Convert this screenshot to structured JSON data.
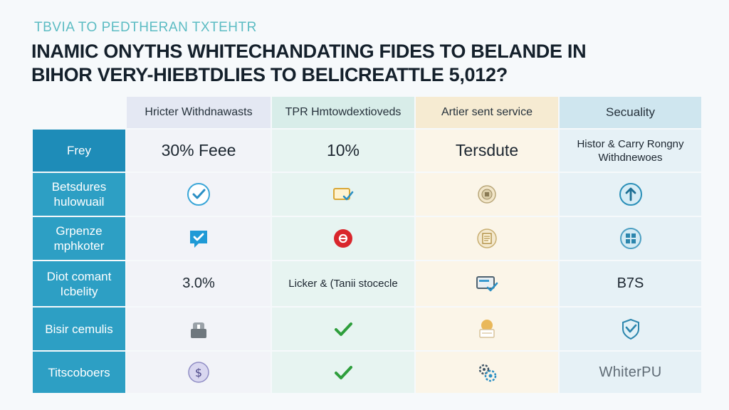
{
  "kicker": "TBVIA TO PEDTHERAN TXTEHTR",
  "headline": {
    "line1": "INAMIC ONYTHS WHITECHANDATING FIDES TO BELANDE IN",
    "line2": "BIHOR VERY-HIEBTDLIES TO BELICREATTLE 5,012?"
  },
  "table": {
    "columns": [
      "Hricter Withdnawasts",
      "TPR Hmtowdextioveds",
      "Artier sent service",
      "Secuality"
    ],
    "rows": [
      {
        "label": "Frey",
        "cells": [
          {
            "text": "30% Feee"
          },
          {
            "text": "10%"
          },
          {
            "text": "Tersdute"
          },
          {
            "text": "Histor & Carry Rongny Withdnewoes"
          }
        ]
      },
      {
        "label": "Betsdures hulowuail",
        "cells": [
          {
            "icon": "check-circle-icon"
          },
          {
            "icon": "card-check-icon"
          },
          {
            "icon": "coin-icon"
          },
          {
            "icon": "arrow-up-circle-icon"
          }
        ]
      },
      {
        "label": "Grpenze mphkoter",
        "cells": [
          {
            "icon": "chat-check-icon"
          },
          {
            "icon": "red-badge-icon"
          },
          {
            "icon": "document-coin-icon"
          },
          {
            "icon": "grid-circle-icon"
          }
        ]
      },
      {
        "label": "Diot comant Icbelity",
        "cells": [
          {
            "text": "3.0%"
          },
          {
            "text": "Licker & (Tanii stocecle"
          },
          {
            "icon": "card-check-icon"
          },
          {
            "text": "B7S"
          }
        ]
      },
      {
        "label": "Bisir cemulis",
        "cells": [
          {
            "icon": "lock-icon"
          },
          {
            "icon": "checkmark-icon"
          },
          {
            "icon": "coin-card-icon"
          },
          {
            "icon": "shield-check-icon"
          }
        ]
      },
      {
        "label": "Titscoboers",
        "cells": [
          {
            "icon": "dollar-circle-icon"
          },
          {
            "icon": "checkmark-icon"
          },
          {
            "icon": "gears-icon"
          },
          {
            "text": "WhiterPU"
          }
        ]
      }
    ]
  },
  "colors": {
    "accent": "#2d9fc4",
    "kicker": "#5cbcc3",
    "check_green": "#2e9e3c",
    "badge_red": "#d9262c"
  }
}
